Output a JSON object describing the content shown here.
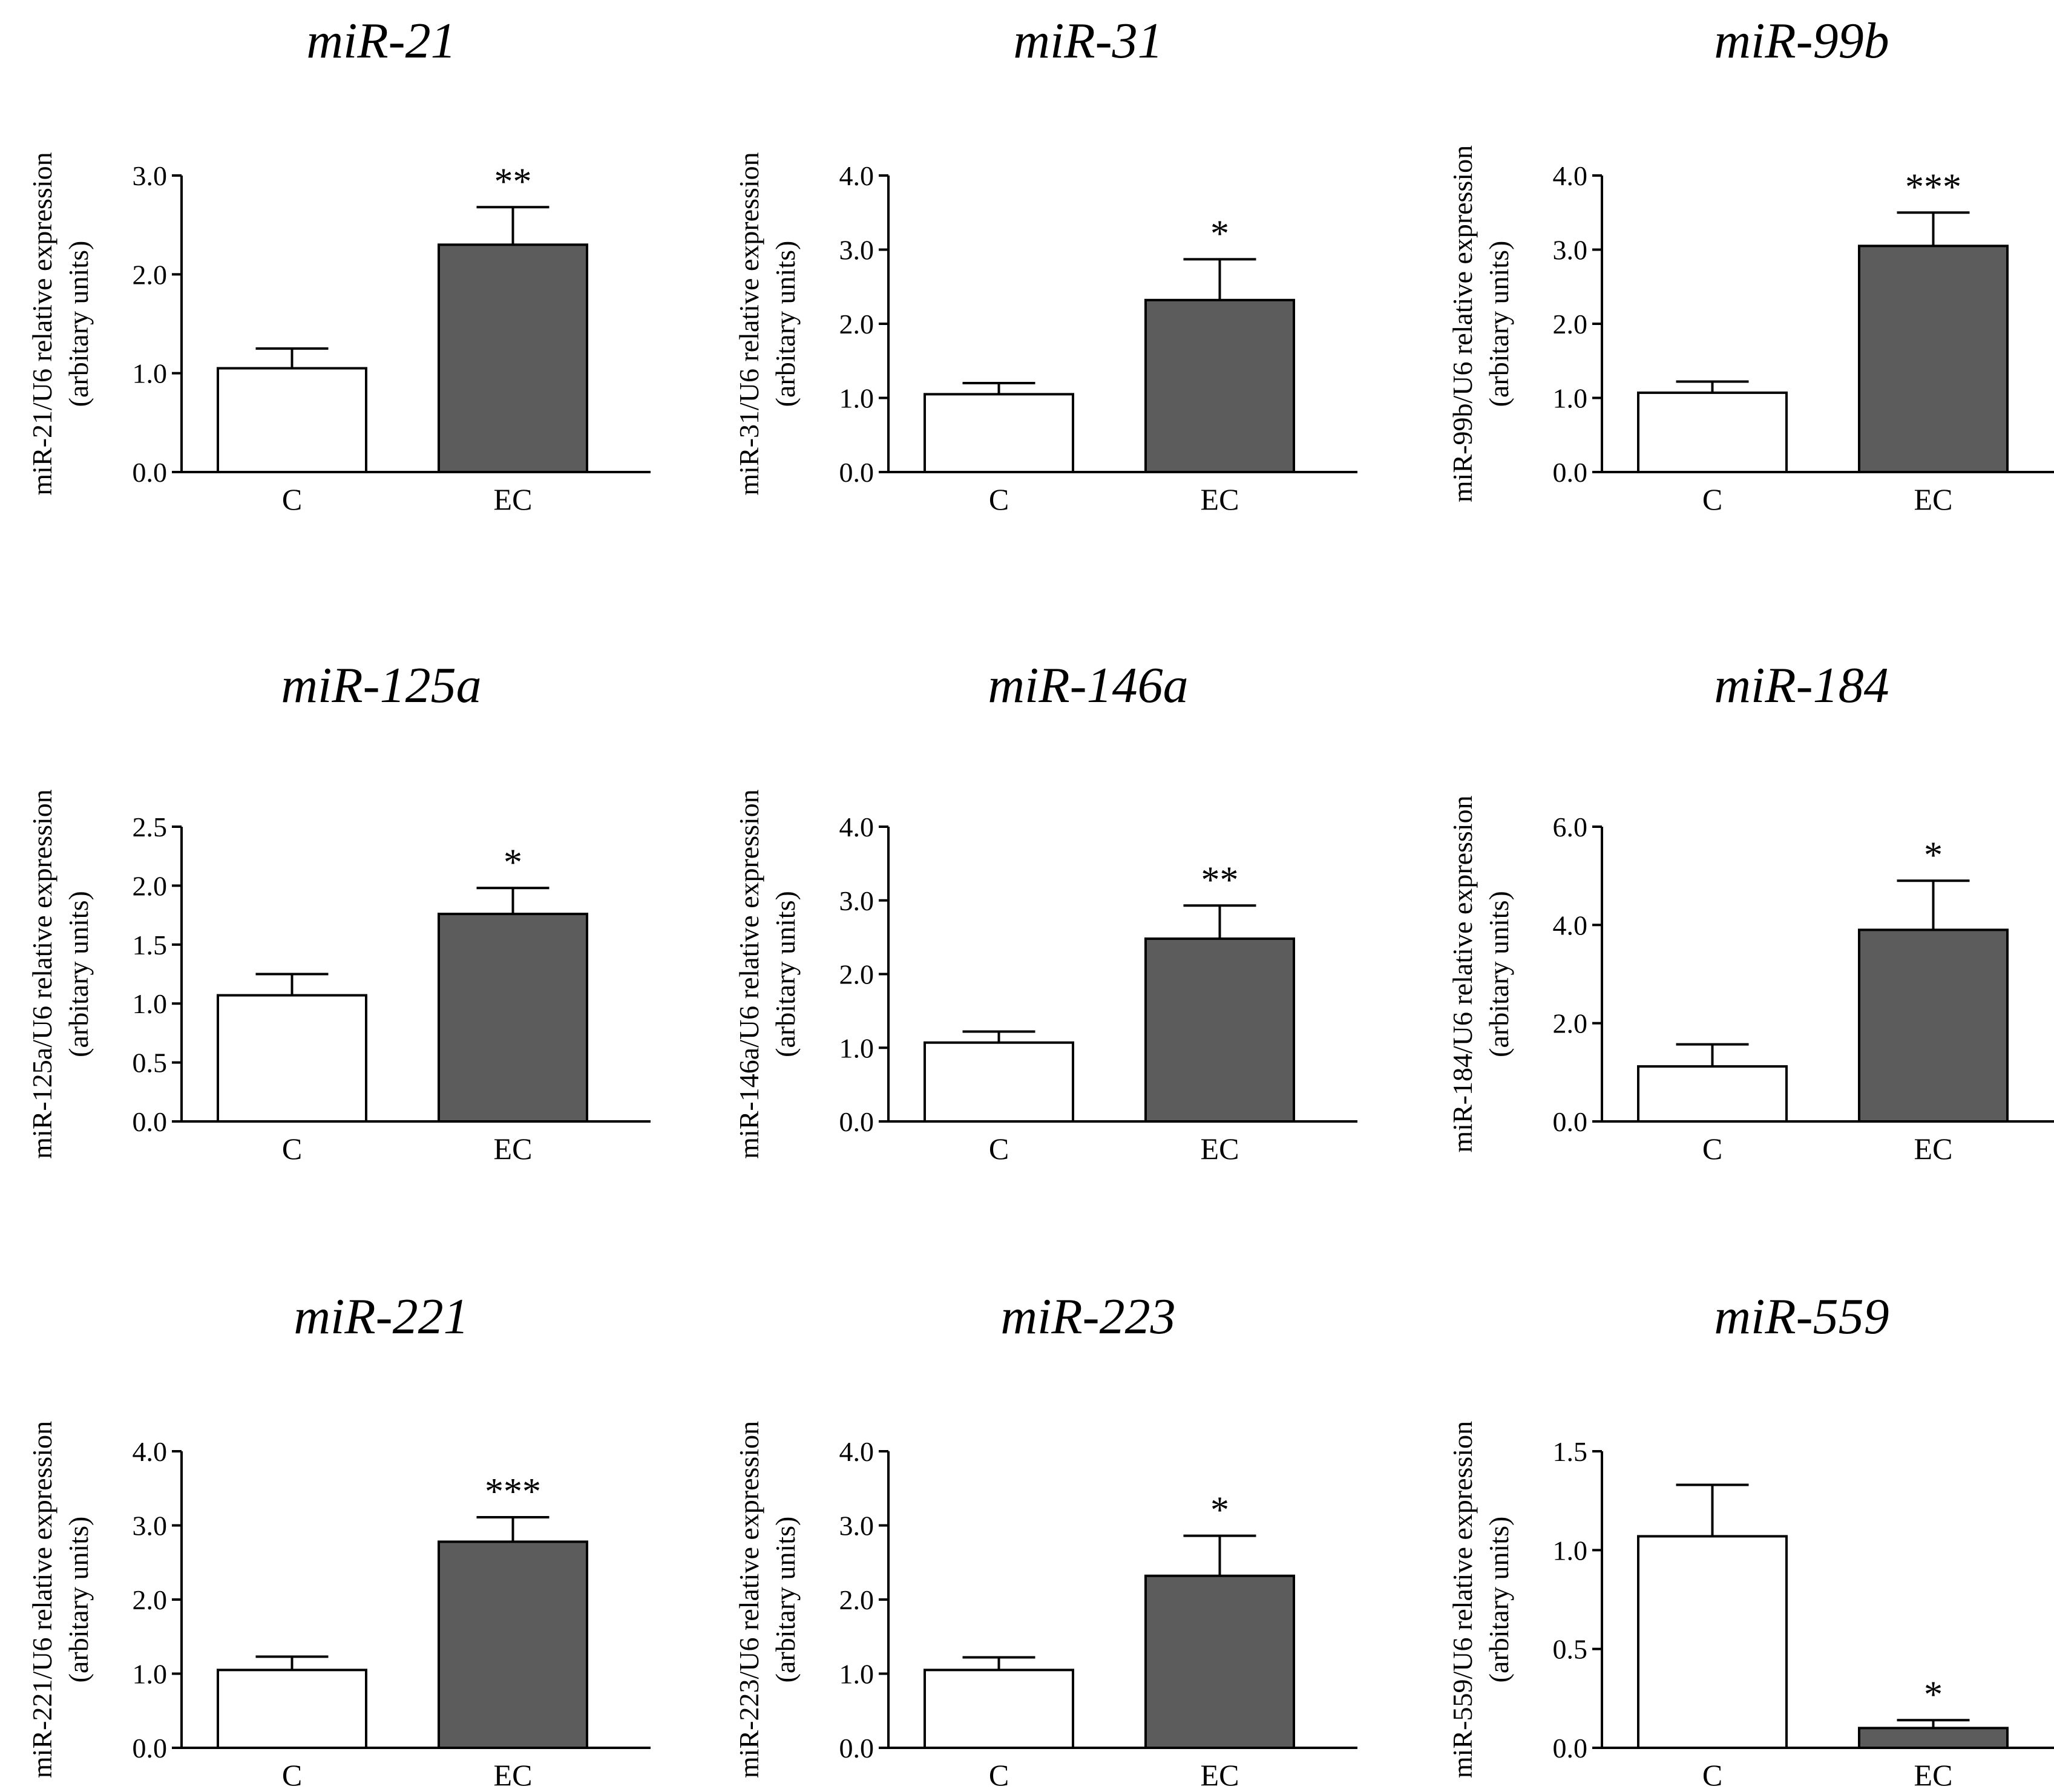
{
  "colors": {
    "control_bar": "#ffffff",
    "ec_bar": "#5c5c5c",
    "axis": "#000000"
  },
  "chart_data": [
    {
      "type": "bar",
      "title": "miR-21",
      "ylabel": [
        "miR-21/U6 relative expression",
        "(arbitary units)"
      ],
      "ylim": [
        0,
        3.0
      ],
      "yticks": [
        "0.0",
        "1.0",
        "2.0",
        "3.0"
      ],
      "categories": [
        "C",
        "EC"
      ],
      "values": [
        1.05,
        2.3
      ],
      "errors": [
        0.2,
        0.38
      ],
      "significance": [
        "",
        "**"
      ]
    },
    {
      "type": "bar",
      "title": "miR-31",
      "ylabel": [
        "miR-31/U6 relative expression",
        "(arbitary units)"
      ],
      "ylim": [
        0,
        4.0
      ],
      "yticks": [
        "0.0",
        "1.0",
        "2.0",
        "3.0",
        "4.0"
      ],
      "categories": [
        "C",
        "EC"
      ],
      "values": [
        1.05,
        2.32
      ],
      "errors": [
        0.15,
        0.55
      ],
      "significance": [
        "",
        "*"
      ]
    },
    {
      "type": "bar",
      "title": "miR-99b",
      "ylabel": [
        "miR-99b/U6 relative expression",
        "(arbitary units)"
      ],
      "ylim": [
        0,
        4.0
      ],
      "yticks": [
        "0.0",
        "1.0",
        "2.0",
        "3.0",
        "4.0"
      ],
      "categories": [
        "C",
        "EC"
      ],
      "values": [
        1.07,
        3.05
      ],
      "errors": [
        0.15,
        0.45
      ],
      "significance": [
        "",
        "***"
      ]
    },
    {
      "type": "bar",
      "title": "miR-125a",
      "ylabel": [
        "miR-125a/U6 relative expression",
        "(arbitary units)"
      ],
      "ylim": [
        0,
        2.5
      ],
      "yticks": [
        "0.0",
        "0.5",
        "1.0",
        "1.5",
        "2.0",
        "2.5"
      ],
      "categories": [
        "C",
        "EC"
      ],
      "values": [
        1.07,
        1.76
      ],
      "errors": [
        0.18,
        0.22
      ],
      "significance": [
        "",
        "*"
      ]
    },
    {
      "type": "bar",
      "title": "miR-146a",
      "ylabel": [
        "miR-146a/U6 relative expression",
        "(arbitary units)"
      ],
      "ylim": [
        0,
        4.0
      ],
      "yticks": [
        "0.0",
        "1.0",
        "2.0",
        "3.0",
        "4.0"
      ],
      "categories": [
        "C",
        "EC"
      ],
      "values": [
        1.07,
        2.48
      ],
      "errors": [
        0.15,
        0.45
      ],
      "significance": [
        "",
        "**"
      ]
    },
    {
      "type": "bar",
      "title": "miR-184",
      "ylabel": [
        "miR-184/U6 relative expression",
        "(arbitary units)"
      ],
      "ylim": [
        0,
        6.0
      ],
      "yticks": [
        "0.0",
        "2.0",
        "4.0",
        "6.0"
      ],
      "categories": [
        "C",
        "EC"
      ],
      "values": [
        1.12,
        3.9
      ],
      "errors": [
        0.45,
        1.0
      ],
      "significance": [
        "",
        "*"
      ]
    },
    {
      "type": "bar",
      "title": "miR-221",
      "ylabel": [
        "miR-221/U6 relative expression",
        "(arbitary units)"
      ],
      "ylim": [
        0,
        4.0
      ],
      "yticks": [
        "0.0",
        "1.0",
        "2.0",
        "3.0",
        "4.0"
      ],
      "categories": [
        "C",
        "EC"
      ],
      "values": [
        1.05,
        2.78
      ],
      "errors": [
        0.18,
        0.33
      ],
      "significance": [
        "",
        "***"
      ]
    },
    {
      "type": "bar",
      "title": "miR-223",
      "ylabel": [
        "miR-223/U6 relative expression",
        "(arbitary units)"
      ],
      "ylim": [
        0,
        4.0
      ],
      "yticks": [
        "0.0",
        "1.0",
        "2.0",
        "3.0",
        "4.0"
      ],
      "categories": [
        "C",
        "EC"
      ],
      "values": [
        1.05,
        2.32
      ],
      "errors": [
        0.17,
        0.54
      ],
      "significance": [
        "",
        "*"
      ]
    },
    {
      "type": "bar",
      "title": "miR-559",
      "ylabel": [
        "miR-559/U6 relative expression",
        "(arbitary units)"
      ],
      "ylim": [
        0,
        1.5
      ],
      "yticks": [
        "0.0",
        "0.5",
        "1.0",
        "1.5"
      ],
      "categories": [
        "C",
        "EC"
      ],
      "values": [
        1.07,
        0.1
      ],
      "errors": [
        0.26,
        0.04
      ],
      "significance": [
        "",
        "*"
      ]
    }
  ]
}
